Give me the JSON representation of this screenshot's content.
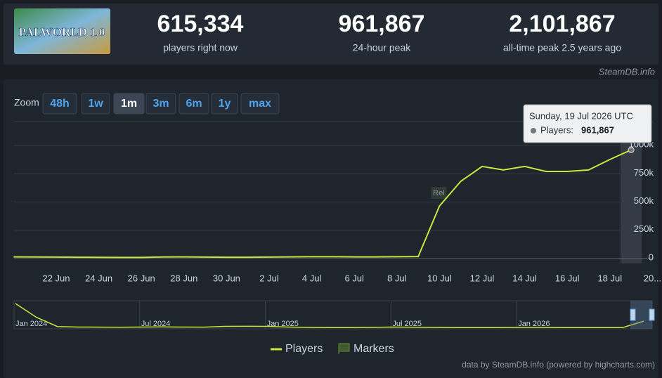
{
  "header": {
    "logo_text": "PALWORLD 1.0",
    "stats": [
      {
        "value": "615,334",
        "label": "players right now"
      },
      {
        "value": "961,867",
        "label": "24-hour peak"
      },
      {
        "value": "2,101,867",
        "label": "all-time peak 2.5 years ago"
      }
    ]
  },
  "source": "SteamDB.info",
  "zoom": {
    "label": "Zoom",
    "buttons": [
      "48h",
      "1w",
      "1m",
      "3m",
      "6m",
      "1y",
      "max"
    ],
    "active": "1m"
  },
  "chart_data": [
    {
      "type": "line",
      "categories": [
        null,
        null,
        "22 Jun",
        null,
        "24 Jun",
        null,
        "26 Jun",
        null,
        "28 Jun",
        null,
        "30 Jun",
        null,
        "2 Jul",
        null,
        "4 Jul",
        null,
        "6 Jul",
        null,
        "8 Jul",
        null,
        "10 Jul",
        null,
        "12 Jul",
        null,
        "14 Jul",
        null,
        "16 Jul",
        null,
        "18 Jul",
        null,
        "20..."
      ],
      "series": [
        {
          "name": "Players",
          "color": "#c8e63c",
          "values": [
            15000,
            14000,
            13000,
            12000,
            11000,
            10000,
            10000,
            14000,
            15000,
            13000,
            12000,
            12000,
            13000,
            15000,
            16000,
            16000,
            15000,
            15000,
            16000,
            18000,
            466000,
            684000,
            815000,
            784000,
            815000,
            771000,
            771000,
            784000,
            877000,
            961867,
            null
          ]
        }
      ],
      "ylim": [
        0,
        1250000
      ],
      "yticks": [
        0,
        {
          "value": 250000,
          "label": "250k"
        },
        {
          "value": 500000,
          "label": "500k"
        },
        {
          "value": 750000,
          "label": "750k"
        },
        {
          "value": 1000000,
          "label": "1000k"
        }
      ],
      "grid": true,
      "annotations": [
        {
          "category": "10 Jul",
          "text": "Rel"
        }
      ]
    },
    {
      "type": "line",
      "categories": [
        "Jan 2024",
        null,
        null,
        null,
        null,
        null,
        "Jul 2024",
        null,
        null,
        null,
        null,
        null,
        "Jan 2025",
        null,
        null,
        null,
        null,
        null,
        "Jul 2025",
        null,
        null,
        null,
        null,
        null,
        "Jan 2026",
        null,
        null,
        null,
        null,
        null,
        null
      ],
      "series": [
        {
          "color": "#c8e63c",
          "values": [
            1980000,
            900000,
            180000,
            140000,
            130000,
            120000,
            140000,
            150000,
            140000,
            130000,
            190000,
            200000,
            190000,
            140000,
            110000,
            100000,
            100000,
            110000,
            140000,
            120000,
            110000,
            100000,
            100000,
            100000,
            110000,
            110000,
            100000,
            100000,
            100000,
            100000,
            600000
          ]
        }
      ],
      "ylim": [
        0,
        2200000
      ]
    }
  ],
  "tooltip": {
    "date": "Sunday, 19 Jul 2026 UTC",
    "series_label": "Players:",
    "value_label": "961,867"
  },
  "legend": {
    "markers": "Markers"
  },
  "footer": "data by SteamDB.info (powered by highcharts.com)"
}
